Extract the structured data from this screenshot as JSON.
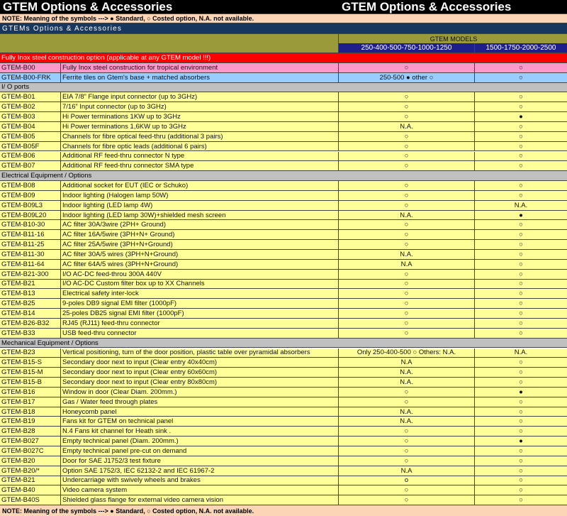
{
  "header": {
    "title_left": "GTEM Options & Accessories",
    "title_right": "GTEM Options & Accessories",
    "note": "NOTE: Meaning of the symbols ---> ● Standard,  ○ Costed option, N.A. not available.",
    "subtitle": "GTEMs Options & Accessories",
    "models_label": "GTEM  MODELS",
    "models": [
      "250-400-500-750-1000-1250",
      "1500-1750-2000-2500"
    ]
  },
  "table": {
    "banner": "Fully Inox steel construction option (applicable at any GTEM model !!!)",
    "top_rows": [
      [
        "GTEM-B00",
        "Fully Inox steel construction for tropical environment",
        "○",
        "○"
      ],
      [
        "GTEM-B00-FRK",
        "Ferrite tiles on Gtem's base + matched absorbers",
        "250-500 ● other ○",
        "○"
      ]
    ],
    "sections": [
      {
        "title": "I/ O ports",
        "rows": [
          [
            "GTEM-B01",
            "EIA 7/8” Flange input connector (up to 3GHz)",
            "○",
            "○"
          ],
          [
            "GTEM-B02",
            "7/16” Input connector (up to 3GHz)",
            "○",
            "○"
          ],
          [
            "GTEM-B03",
            "Hi Power terminations 1KW up to 3GHz",
            "○",
            "●"
          ],
          [
            "GTEM-B04",
            "Hi Power terminations 1,6KW up to 3GHz",
            "N.A.",
            "○"
          ],
          [
            "GTEM-B05",
            "Channels for fibre optical feed-thru (additional 3 pairs)",
            "○",
            "○"
          ],
          [
            "GTEM-B05F",
            "Channels for fibre optic leads (additional 6 pairs)",
            "○",
            "○"
          ],
          [
            "GTEM-B06",
            "Additional RF feed-thru connector N type",
            "○",
            "○"
          ],
          [
            "GTEM-B07",
            "Additional RF feed-thru connector SMA type",
            "○",
            "○"
          ]
        ]
      },
      {
        "title": "Electrical Equipment / Options",
        "rows": [
          [
            "GTEM-B08",
            "Additional socket for EUT  (IEC or Schuko)",
            "○",
            "○"
          ],
          [
            "GTEM-B09",
            "Indoor lighting (Halogen lamp 50W)",
            "○",
            "○"
          ],
          [
            "GTEM-B09L3",
            "Indoor lighting (LED lamp 4W)",
            "○",
            "N.A."
          ],
          [
            "GTEM-B09L20",
            "Indoor lighting (LED lamp 30W)+shielded mesh screen",
            "N.A.",
            "●"
          ],
          [
            "GTEM-B10-30",
            "AC filter 30A/3wire (2PH+ Ground)",
            "○",
            "○"
          ],
          [
            "GTEM-B11-16",
            "AC filter 16A/5wire (3PH+N+ Ground)",
            "○",
            "○"
          ],
          [
            "GTEM-B11-25",
            "AC filter 25A/5wire (3PH+N+Ground)",
            "○",
            "○"
          ],
          [
            "GTEM-B11-30",
            "AC filter 30A/5 wires (3PH+N+Ground)",
            "N.A.",
            "○"
          ],
          [
            "GTEM-B11-64",
            "AC filter 64A/5 wires (3PH+N+Ground)",
            "N.A",
            "○"
          ],
          [
            "GTEM-B21-300",
            "I/O AC-DC feed-throu 300A 440V",
            "○",
            "○"
          ],
          [
            "GTEM-B21",
            "I/O AC-DC Custom filter box up to XX Channels",
            "○",
            "○"
          ],
          [
            "GTEM-B13",
            "Electrical safety inter-lock",
            "○",
            "○"
          ],
          [
            "GTEM-B25",
            "9-poles DB9 signal EMI filter (1000pF)",
            "○",
            "○"
          ],
          [
            "GTEM-B14",
            "25-poles DB25 signal EMI filter (1000pF)",
            "○",
            "○"
          ],
          [
            "GTEM-B26-B32",
            "RJ45 (RJ11) feed-thru connector",
            "○",
            "○"
          ],
          [
            "GTEM-B33",
            "USB feed-thru connector",
            "○",
            "○"
          ]
        ]
      },
      {
        "title": "Mechanical Equipment / Options",
        "rows": [
          [
            "GTEM-B23",
            "Vertical positioning, turn of the door position, plastic table over pyramidal absorbers",
            "Only 250-400-500  ○ Others: N.A.",
            "N.A."
          ],
          [
            "GTEM-B15-S",
            "Secondary door next to input (Clear entry 40x40cm)",
            "N.A",
            "○"
          ],
          [
            "GTEM-B15-M",
            "Secondary door next to input (Clear entry 60x60cm)",
            "N.A.",
            "○"
          ],
          [
            "GTEM-B15-B",
            "Secondary door next to input (Clear entry 80x80cm)",
            "N.A.",
            "○"
          ],
          [
            "GTEM-B16",
            "Window in door (Clear Diam. 200mm.)",
            "○",
            "●"
          ],
          [
            "GTEM-B17",
            "Gas / Water feed through plates",
            "○",
            "○"
          ],
          [
            "GTEM-B18",
            "Honeycomb panel",
            "N.A.",
            "○"
          ],
          [
            "GTEM-B19",
            "Fans kit for GTEM on technical panel",
            "N.A.",
            "○"
          ],
          [
            "GTEM-B28",
            "N.4 Fans kit channel for Heath sink .",
            "○",
            "○"
          ],
          [
            "GTEM-B027",
            "Empty technical panel (Diam. 200mm.)",
            "○",
            "●"
          ],
          [
            "GTEM-B027C",
            "Empty technical panel pre-cut on demand",
            "○",
            "○"
          ],
          [
            "GTEM-B20",
            "Door for SAE J1752/3 test fixture",
            "○",
            "○"
          ],
          [
            "GTEM-B20/*",
            "Option SAE 1752/3, IEC 62132-2 and IEC 61967-2",
            "N.A",
            "○"
          ],
          [
            "GTEM-B21",
            "Undercarriage with swively wheels and brakes",
            "o",
            "○"
          ],
          [
            "GTEM-B40",
            "Video camera system",
            "○",
            "○"
          ],
          [
            "GTEM-B40S",
            "Shielded glass flange for external video camera vision",
            "○",
            "○"
          ]
        ]
      }
    ]
  },
  "footer": {
    "note": "NOTE: Meaning of the symbols ---> ● Standard,  ○ Costed option, N.A. not available."
  }
}
